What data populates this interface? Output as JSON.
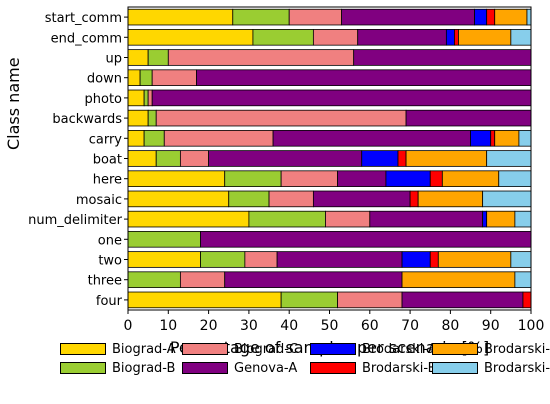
{
  "chart_data": {
    "type": "bar",
    "orientation": "horizontal",
    "stacked": true,
    "xlabel": "Percentage of samples per scenario [%]",
    "ylabel": "Class name",
    "xlim": [
      0,
      100
    ],
    "xticks": [
      "0",
      "10",
      "20",
      "30",
      "40",
      "50",
      "60",
      "70",
      "80",
      "90",
      "100"
    ],
    "grid": false,
    "legend_position": "bottom",
    "categories": [
      "start_comm",
      "end_comm",
      "up",
      "down",
      "photo",
      "backwards",
      "carry",
      "boat",
      "here",
      "mosaic",
      "num_delimiter",
      "one",
      "two",
      "three",
      "four"
    ],
    "series": [
      {
        "name": "Biograd-A",
        "color": "#FFD700",
        "values": [
          26,
          31,
          5,
          3,
          4,
          5,
          4,
          7,
          24,
          25,
          30,
          0,
          18,
          0,
          38
        ]
      },
      {
        "name": "Biograd-B",
        "color": "#9ACD32",
        "values": [
          14,
          15,
          5,
          3,
          1,
          2,
          5,
          6,
          14,
          10,
          19,
          18,
          11,
          13,
          14
        ]
      },
      {
        "name": "Biograd-C",
        "color": "#F08080",
        "values": [
          13,
          11,
          46,
          11,
          1,
          62,
          27,
          7,
          14,
          11,
          11,
          0,
          8,
          11,
          16
        ]
      },
      {
        "name": "Genova-A",
        "color": "#800080",
        "values": [
          33,
          22,
          44,
          83,
          94,
          31,
          49,
          38,
          12,
          24,
          28,
          82,
          31,
          44,
          30
        ]
      },
      {
        "name": "Brodarski-A",
        "color": "#0000FF",
        "values": [
          3,
          2,
          0,
          0,
          0,
          0,
          5,
          9,
          11,
          0,
          1,
          0,
          7,
          0,
          0
        ]
      },
      {
        "name": "Brodarski-B",
        "color": "#FF0000",
        "values": [
          2,
          1,
          0,
          0,
          0,
          0,
          1,
          2,
          3,
          2,
          0,
          0,
          2,
          0,
          2
        ]
      },
      {
        "name": "Brodarski-C",
        "color": "#FFA500",
        "values": [
          8,
          13,
          0,
          0,
          0,
          0,
          6,
          20,
          14,
          16,
          7,
          0,
          18,
          28,
          0
        ]
      },
      {
        "name": "Brodarski-D",
        "color": "#87CEEB",
        "values": [
          1,
          5,
          0,
          0,
          0,
          0,
          3,
          11,
          8,
          12,
          4,
          0,
          5,
          4,
          0
        ]
      }
    ]
  }
}
